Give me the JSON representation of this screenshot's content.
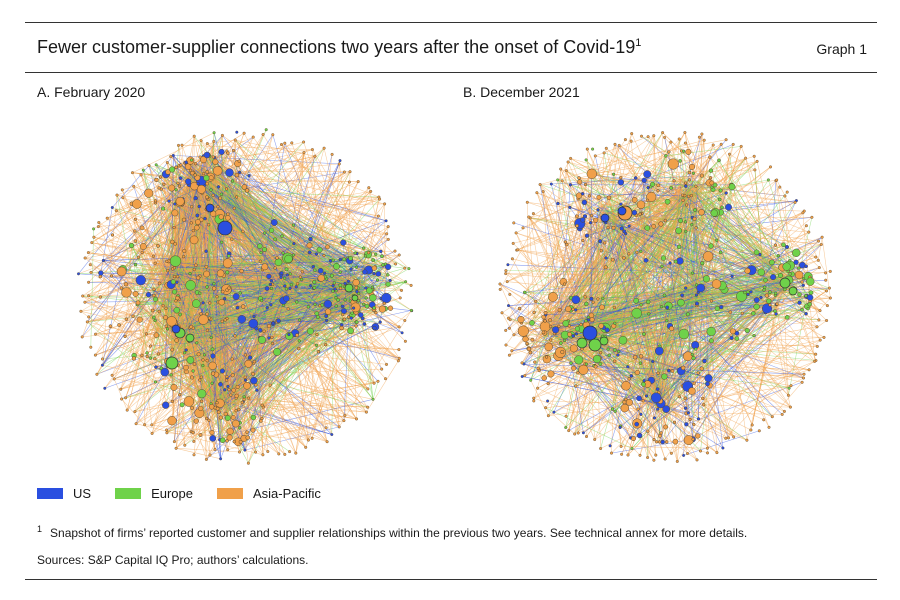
{
  "header": {
    "title": "Fewer customer-supplier connections two years after the onset of Covid-19",
    "title_footnote_marker": "1",
    "graph_label": "Graph 1"
  },
  "panels": [
    {
      "id": "a",
      "title": "A. February 2020"
    },
    {
      "id": "b",
      "title": "B. December 2021"
    }
  ],
  "legend": [
    {
      "label": "US",
      "color": "#2a4fe0"
    },
    {
      "label": "Europe",
      "color": "#6fd24a"
    },
    {
      "label": "Asia-Pacific",
      "color": "#f0a04a"
    }
  ],
  "footnote": {
    "marker": "1",
    "text": "Snapshot of firms’ reported customer and supplier relationships within the previous two years. See technical annex for more details."
  },
  "sources": "Sources: S&P Capital IQ Pro; authors’ calculations."
}
